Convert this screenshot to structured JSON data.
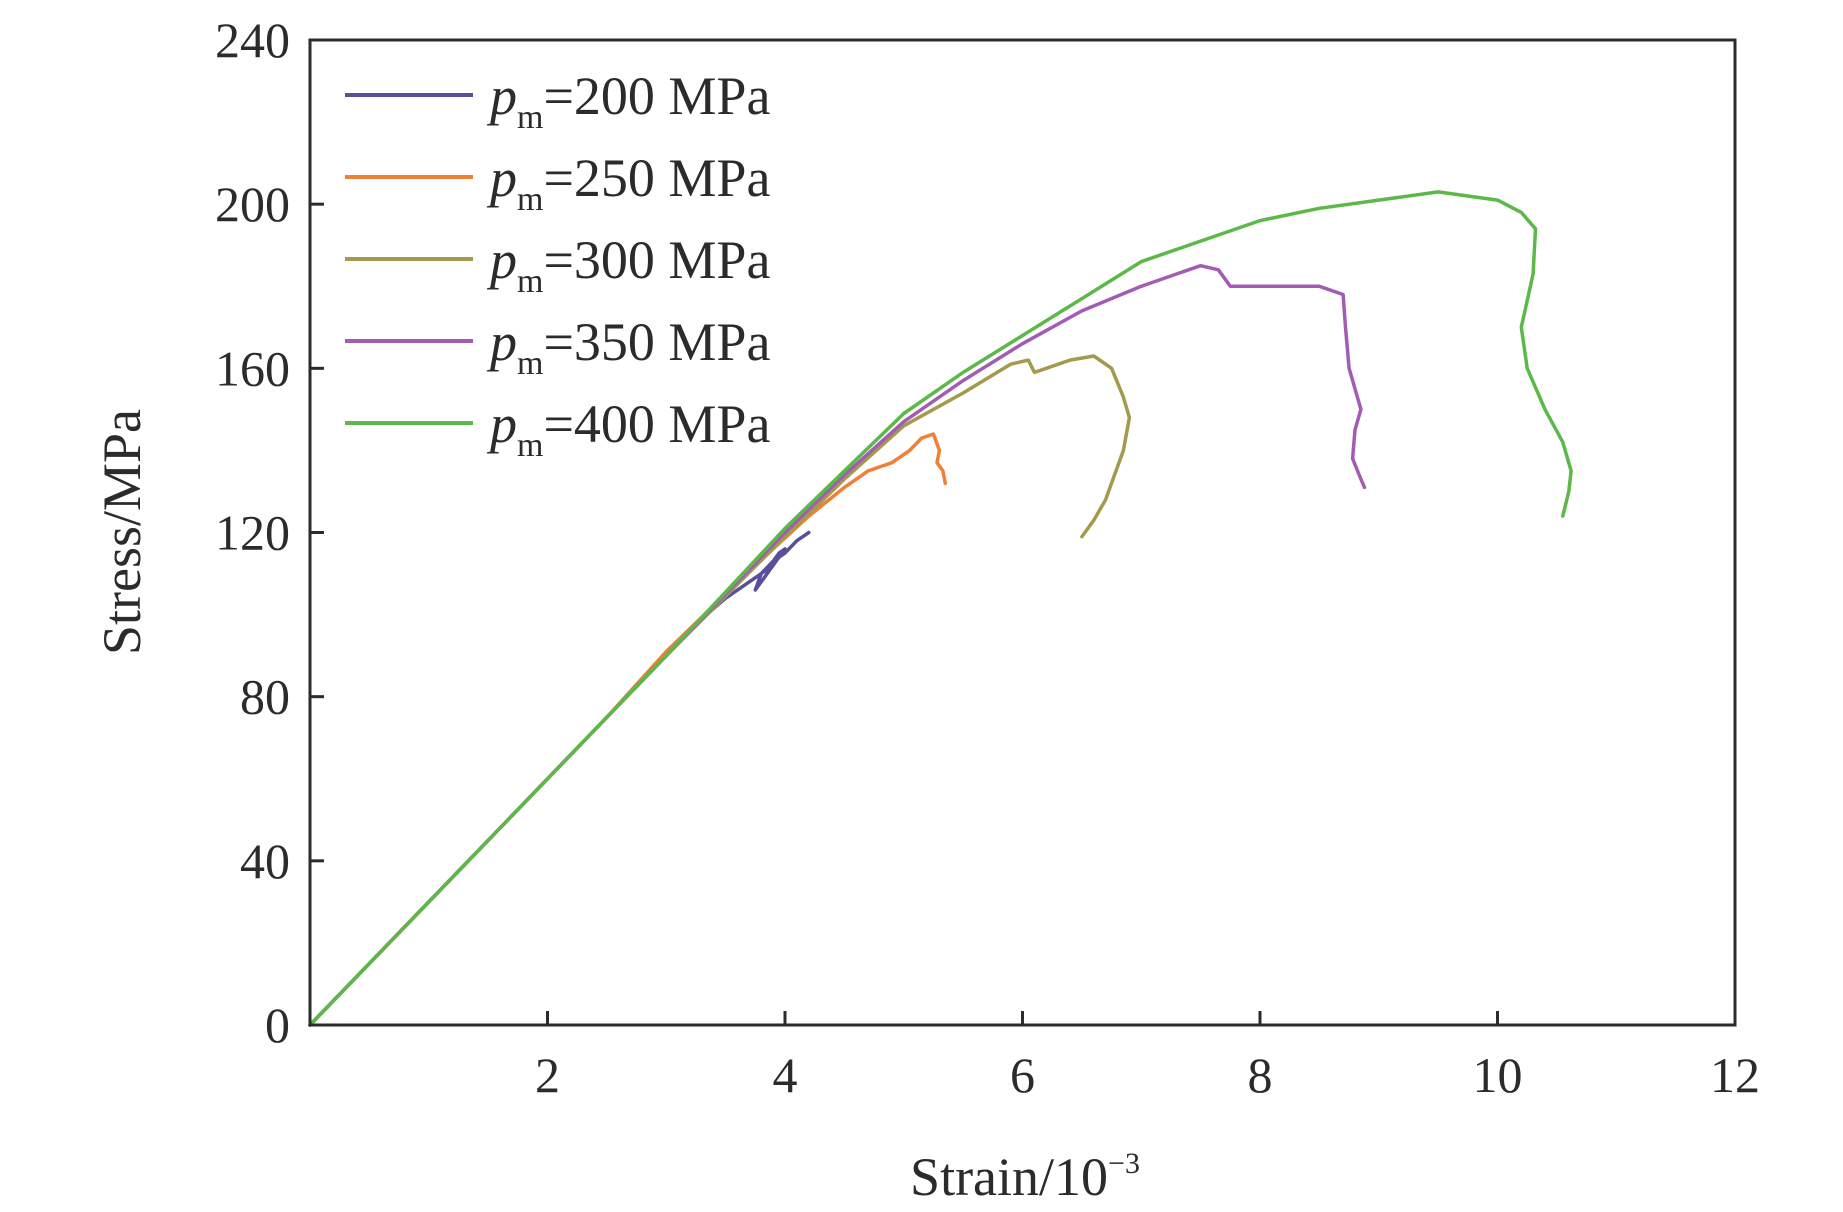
{
  "chart_data": {
    "type": "line",
    "title": "",
    "xlabel": "Strain/10",
    "xlabel_exponent": "−3",
    "ylabel": "Stress/MPa",
    "xlim": [
      0,
      12
    ],
    "ylim": [
      0,
      240
    ],
    "xticks": [
      2,
      4,
      6,
      8,
      10,
      12
    ],
    "yticks": [
      0,
      40,
      80,
      120,
      160,
      200,
      240
    ],
    "legend_position": "top-left",
    "series": [
      {
        "name": "pm=200 MPa",
        "legend_symbol": "p",
        "legend_subscript": "m",
        "legend_value": "=200 MPa",
        "color": "#5a4f9b",
        "x": [
          0,
          1,
          2,
          2.5,
          3,
          3.3,
          3.5,
          3.7,
          3.85,
          3.95,
          4.0,
          3.9,
          3.75,
          3.8,
          3.9,
          4.0,
          4.1,
          4.2
        ],
        "y": [
          0,
          30,
          60,
          75,
          90,
          99,
          104,
          108,
          111,
          115,
          116,
          112,
          106,
          110,
          113,
          115,
          118,
          120
        ]
      },
      {
        "name": "pm=250 MPa",
        "legend_symbol": "p",
        "legend_subscript": "m",
        "legend_value": "=250 MPa",
        "color": "#ef8036",
        "x": [
          0,
          1,
          2,
          2.5,
          3,
          3.5,
          3.9,
          4.2,
          4.5,
          4.7,
          4.9,
          5.05,
          5.15,
          5.25,
          5.3,
          5.28,
          5.33,
          5.35
        ],
        "y": [
          0,
          30,
          60,
          75,
          91,
          105,
          116,
          124,
          131,
          135,
          137,
          140,
          143,
          144,
          140,
          137,
          135,
          132
        ]
      },
      {
        "name": "pm=300 MPa",
        "legend_symbol": "p",
        "legend_subscript": "m",
        "legend_value": "=300 MPa",
        "color": "#a39a4c",
        "x": [
          0,
          2,
          3,
          4,
          4.5,
          5,
          5.5,
          5.9,
          6.05,
          6.1,
          6.2,
          6.4,
          6.6,
          6.75,
          6.85,
          6.9,
          6.85,
          6.7,
          6.6,
          6.5
        ],
        "y": [
          0,
          60,
          90,
          119,
          133,
          146,
          154,
          161,
          162,
          159,
          160,
          162,
          163,
          160,
          153,
          148,
          140,
          128,
          123,
          119
        ]
      },
      {
        "name": "pm=350 MPa",
        "legend_symbol": "p",
        "legend_subscript": "m",
        "legend_value": "=350 MPa",
        "color": "#a35cb3",
        "x": [
          0,
          2,
          3,
          4,
          4.5,
          5,
          5.5,
          6,
          6.5,
          7,
          7.3,
          7.5,
          7.65,
          7.75,
          8,
          8.5,
          8.7,
          8.72,
          8.75,
          8.85,
          8.8,
          8.78,
          8.85,
          8.88
        ],
        "y": [
          0,
          60,
          90,
          120,
          134,
          147,
          157,
          166,
          174,
          180,
          183,
          185,
          184,
          180,
          180,
          180,
          178,
          170,
          160,
          150,
          145,
          138,
          133,
          131
        ]
      },
      {
        "name": "pm=400 MPa",
        "legend_symbol": "p",
        "legend_subscript": "m",
        "legend_value": "=400 MPa",
        "color": "#5cb949",
        "x": [
          0,
          2,
          3,
          4,
          4.5,
          5,
          5.5,
          6,
          6.5,
          7,
          7.5,
          8,
          8.5,
          9,
          9.5,
          10,
          10.2,
          10.32,
          10.3,
          10.2,
          10.25,
          10.4,
          10.55,
          10.62,
          10.6,
          10.55
        ],
        "y": [
          0,
          60,
          90,
          121,
          135,
          149,
          159,
          168,
          177,
          186,
          191,
          196,
          199,
          201,
          203,
          201,
          198,
          194,
          183,
          170,
          160,
          150,
          142,
          135,
          130,
          124
        ]
      }
    ]
  }
}
